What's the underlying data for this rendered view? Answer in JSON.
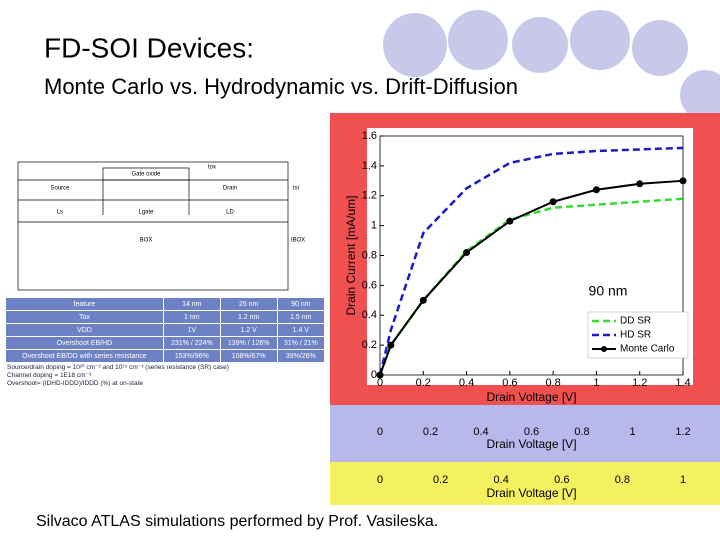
{
  "slide": {
    "title": "FD-SOI Devices:",
    "subtitle": "Monte Carlo vs. Hydrodynamic vs. Drift-Diffusion",
    "footer": "Silvaco ATLAS simulations performed by Prof. Vasileska."
  },
  "device_diagram": {
    "gate_oxide": "Gate oxide",
    "tox": "tox",
    "source": "Source",
    "drain": "Drain",
    "tsi": "tsi",
    "ls": "Ls",
    "lgate": "Lgate",
    "ld": "LD",
    "box": "BOX",
    "tbox": "tBOX"
  },
  "device_table": {
    "header": [
      "feature",
      "14 nm",
      "25 nm",
      "90 nm"
    ],
    "rows": [
      [
        "Tox",
        "1 nm",
        "1.2 nm",
        "1.5 nm"
      ],
      [
        "VDD",
        "1V",
        "1.2 V",
        "1.4 V"
      ],
      [
        "Overshoot EB/HD",
        "231% / 224%",
        "139% / 126%",
        "31% / 21%"
      ],
      [
        "Overshoot EB/DD with series resistance",
        "153%/96%",
        "108%/67%",
        "39%/26%"
      ]
    ],
    "notes": [
      "Source/drain doping = 10²⁰ cm⁻³ and 10¹⁹ cm⁻³ (series resistance (SR) case)",
      "Channel doping = 1E18 cm⁻³",
      "Overshoot= (IDHD-IDDD)/IDDD (%) at on-state"
    ]
  },
  "chart_data": [
    {
      "type": "line",
      "annotation": "90 nm",
      "xlabel": "Drain Voltage [V]",
      "ylabel": "Drain Current [mA/um]",
      "x": [
        0,
        0.05,
        0.2,
        0.4,
        0.6,
        0.8,
        1.0,
        1.2,
        1.4
      ],
      "series": [
        {
          "name": "DD SR",
          "color": "#33dd33",
          "values": [
            0,
            0.2,
            0.5,
            0.83,
            1.04,
            1.12,
            1.14,
            1.16,
            1.18
          ]
        },
        {
          "name": "HD SR",
          "color": "#1a1acc",
          "values": [
            0,
            0.3,
            0.95,
            1.25,
            1.42,
            1.48,
            1.5,
            1.51,
            1.52
          ]
        },
        {
          "name": "Monte Carlo",
          "color": "#000000",
          "values": [
            0,
            0.2,
            0.5,
            0.82,
            1.03,
            1.16,
            1.24,
            1.28,
            1.3
          ]
        }
      ],
      "xlim": [
        0,
        1.4
      ],
      "xticks": [
        0,
        0.2,
        0.4,
        0.6,
        0.8,
        1,
        1.2,
        1.4
      ],
      "ylim": [
        0,
        1.6
      ],
      "yticks": [
        0,
        0.2,
        0.4,
        0.6,
        0.8,
        1,
        1.2,
        1.4,
        1.6
      ],
      "legend": "lower right"
    },
    {
      "type": "line",
      "xlabel": "Drain Voltage [V]",
      "xlim": [
        0,
        1.2
      ],
      "xticks": [
        0,
        0.2,
        0.4,
        0.6,
        0.8,
        1,
        1.2
      ]
    },
    {
      "type": "line",
      "xlabel": "Drain Voltage [V]",
      "xlim": [
        0,
        1
      ],
      "xticks": [
        0,
        0.2,
        0.4,
        0.6,
        0.8,
        1
      ]
    }
  ]
}
